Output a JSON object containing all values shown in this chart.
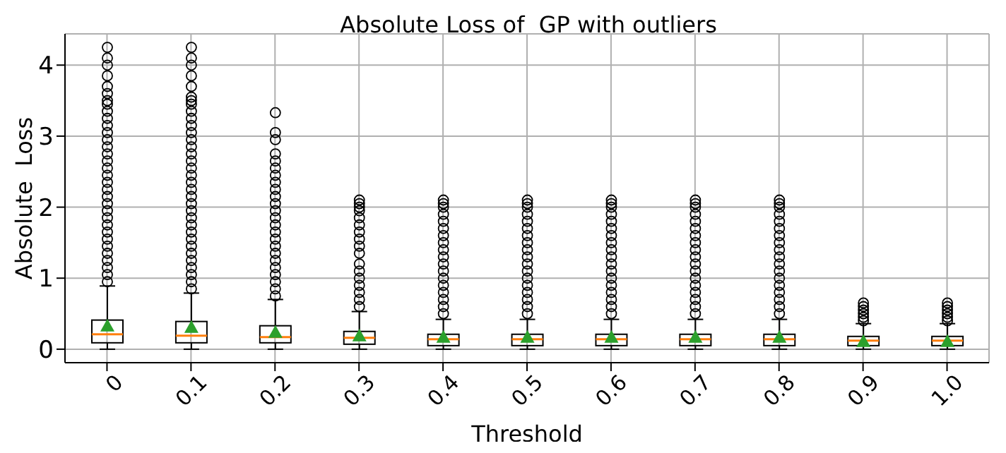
{
  "chart_data": {
    "type": "box",
    "title": "Absolute Loss of  GP with outliers",
    "xlabel": "Threshold",
    "ylabel": "Absolute  Loss",
    "categories": [
      "0",
      "0.1",
      "0.2",
      "0.3",
      "0.4",
      "0.5",
      "0.6",
      "0.7",
      "0.8",
      "0.9",
      "1.0"
    ],
    "ylim": [
      -0.19,
      4.44
    ],
    "yticks": [
      0,
      1,
      2,
      3,
      4
    ],
    "grid": true,
    "marker": "triangle",
    "boxes": [
      {
        "low": 0,
        "q1": 0.09,
        "median": 0.21,
        "q3": 0.41,
        "high": 0.89,
        "mean": 0.33,
        "outliers": [
          0.95,
          1.05,
          1.15,
          1.25,
          1.35,
          1.45,
          1.55,
          1.65,
          1.75,
          1.85,
          1.95,
          2.05,
          2.15,
          2.25,
          2.35,
          2.45,
          2.55,
          2.65,
          2.75,
          2.85,
          2.95,
          3.05,
          3.15,
          3.25,
          3.35,
          3.45,
          3.5,
          3.6,
          3.7,
          3.85,
          4.0,
          4.1,
          4.25
        ]
      },
      {
        "low": 0,
        "q1": 0.09,
        "median": 0.19,
        "q3": 0.39,
        "high": 0.79,
        "mean": 0.31,
        "outliers": [
          0.85,
          0.95,
          1.05,
          1.15,
          1.25,
          1.35,
          1.45,
          1.55,
          1.65,
          1.75,
          1.85,
          1.95,
          2.05,
          2.15,
          2.25,
          2.35,
          2.45,
          2.55,
          2.65,
          2.75,
          2.85,
          2.95,
          3.05,
          3.15,
          3.25,
          3.35,
          3.45,
          3.5,
          3.55,
          3.7,
          3.85,
          4.0,
          4.1,
          4.25
        ]
      },
      {
        "low": 0,
        "q1": 0.09,
        "median": 0.17,
        "q3": 0.33,
        "high": 0.7,
        "mean": 0.24,
        "outliers": [
          0.75,
          0.85,
          0.95,
          1.05,
          1.15,
          1.25,
          1.35,
          1.45,
          1.55,
          1.65,
          1.75,
          1.85,
          1.95,
          2.05,
          2.15,
          2.25,
          2.35,
          2.45,
          2.55,
          2.65,
          2.75,
          2.95,
          3.05,
          3.33
        ]
      },
      {
        "low": 0,
        "q1": 0.07,
        "median": 0.16,
        "q3": 0.25,
        "high": 0.53,
        "mean": 0.19,
        "outliers": [
          0.6,
          0.7,
          0.8,
          0.9,
          1.0,
          1.1,
          1.2,
          1.35,
          1.45,
          1.55,
          1.65,
          1.75,
          1.85,
          1.95,
          2.0,
          2.05,
          2.1
        ]
      },
      {
        "low": 0,
        "q1": 0.05,
        "median": 0.14,
        "q3": 0.21,
        "high": 0.42,
        "mean": 0.17,
        "outliers": [
          0.5,
          0.6,
          0.7,
          0.8,
          0.9,
          1.0,
          1.1,
          1.2,
          1.3,
          1.4,
          1.5,
          1.6,
          1.7,
          1.8,
          1.9,
          2.0,
          2.05,
          2.1
        ]
      },
      {
        "low": 0,
        "q1": 0.05,
        "median": 0.14,
        "q3": 0.21,
        "high": 0.42,
        "mean": 0.17,
        "outliers": [
          0.5,
          0.6,
          0.7,
          0.8,
          0.9,
          1.0,
          1.1,
          1.2,
          1.3,
          1.4,
          1.5,
          1.6,
          1.7,
          1.8,
          1.9,
          2.0,
          2.05,
          2.1
        ]
      },
      {
        "low": 0,
        "q1": 0.05,
        "median": 0.14,
        "q3": 0.21,
        "high": 0.42,
        "mean": 0.17,
        "outliers": [
          0.5,
          0.6,
          0.7,
          0.8,
          0.9,
          1.0,
          1.1,
          1.2,
          1.3,
          1.4,
          1.5,
          1.6,
          1.7,
          1.8,
          1.9,
          2.0,
          2.05,
          2.1
        ]
      },
      {
        "low": 0,
        "q1": 0.05,
        "median": 0.14,
        "q3": 0.21,
        "high": 0.42,
        "mean": 0.17,
        "outliers": [
          0.5,
          0.6,
          0.7,
          0.8,
          0.9,
          1.0,
          1.1,
          1.2,
          1.3,
          1.4,
          1.5,
          1.6,
          1.7,
          1.8,
          1.9,
          2.0,
          2.05,
          2.1
        ]
      },
      {
        "low": 0,
        "q1": 0.05,
        "median": 0.14,
        "q3": 0.21,
        "high": 0.42,
        "mean": 0.17,
        "outliers": [
          0.5,
          0.6,
          0.7,
          0.8,
          0.9,
          1.0,
          1.1,
          1.2,
          1.3,
          1.4,
          1.5,
          1.6,
          1.7,
          1.8,
          1.9,
          2.0,
          2.05,
          2.1
        ]
      },
      {
        "low": 0,
        "q1": 0.05,
        "median": 0.12,
        "q3": 0.18,
        "high": 0.36,
        "mean": 0.11,
        "outliers": [
          0.4,
          0.45,
          0.5,
          0.55,
          0.6,
          0.65
        ]
      },
      {
        "low": 0,
        "q1": 0.05,
        "median": 0.12,
        "q3": 0.18,
        "high": 0.36,
        "mean": 0.11,
        "outliers": [
          0.4,
          0.45,
          0.5,
          0.55,
          0.6,
          0.65
        ]
      }
    ]
  }
}
